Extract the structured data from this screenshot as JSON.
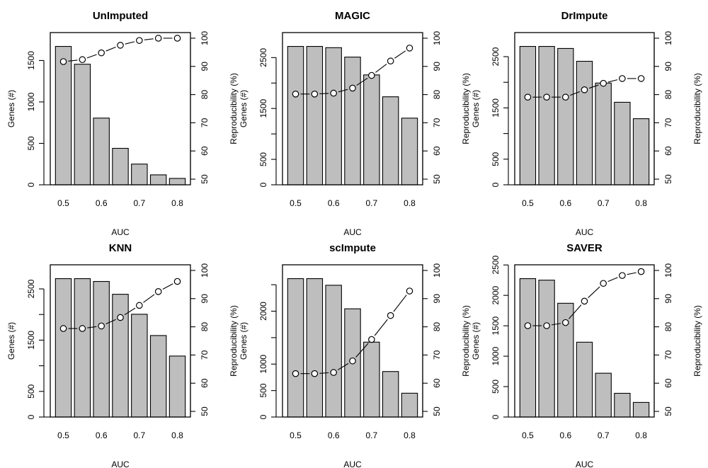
{
  "chart_data": [
    {
      "type": "bar",
      "title": "UnImputed",
      "xlabel": "AUC",
      "ylabel": "Genes (#)",
      "y2label": "Reproducibility (%)",
      "categories": [
        "0.5",
        "0.55",
        "0.6",
        "0.65",
        "0.7",
        "0.75",
        "0.8"
      ],
      "x_tick_labels": [
        "0.5",
        "0.6",
        "0.7",
        "0.8"
      ],
      "y_ticks": [
        0,
        500,
        1000,
        1500
      ],
      "y_tick_labels": [
        "0",
        "500",
        "1000",
        "1500"
      ],
      "y2_ticks": [
        50,
        60,
        70,
        80,
        90,
        100
      ],
      "y2lim": [
        50,
        100
      ],
      "series": [
        {
          "name": "Genes (#)",
          "type": "bar",
          "values": [
            1670,
            1455,
            805,
            440,
            250,
            120,
            77
          ]
        },
        {
          "name": "Reproducibility (%)",
          "type": "line",
          "axis": "right",
          "values": [
            91.7,
            92.4,
            94.8,
            97.5,
            99.2,
            100,
            100
          ]
        }
      ]
    },
    {
      "type": "bar",
      "title": "MAGIC",
      "xlabel": "AUC",
      "ylabel": "Genes (#)",
      "y2label": "Reproducibility (%)",
      "categories": [
        "0.5",
        "0.55",
        "0.6",
        "0.65",
        "0.7",
        "0.75",
        "0.8"
      ],
      "x_tick_labels": [
        "0.5",
        "0.6",
        "0.7",
        "0.8"
      ],
      "y_ticks": [
        0,
        500,
        1000,
        1500,
        2000,
        2500
      ],
      "y_tick_labels": [
        "0",
        "500",
        "",
        "1500",
        "",
        "2500"
      ],
      "y2_ticks": [
        50,
        60,
        70,
        80,
        90,
        100
      ],
      "y2lim": [
        50,
        100
      ],
      "series": [
        {
          "name": "Genes (#)",
          "type": "bar",
          "values": [
            2720,
            2720,
            2695,
            2510,
            2160,
            1730,
            1310
          ]
        },
        {
          "name": "Reproducibility (%)",
          "type": "line",
          "axis": "right",
          "values": [
            80.2,
            80.2,
            80.5,
            82.3,
            86.8,
            91.9,
            96.5
          ]
        }
      ]
    },
    {
      "type": "bar",
      "title": "DrImpute",
      "xlabel": "AUC",
      "ylabel": "Genes (#)",
      "y2label": "Reproducibility (%)",
      "categories": [
        "0.5",
        "0.55",
        "0.6",
        "0.65",
        "0.7",
        "0.75",
        "0.8"
      ],
      "x_tick_labels": [
        "0.5",
        "0.6",
        "0.7",
        "0.8"
      ],
      "y_ticks": [
        0,
        500,
        1000,
        1500,
        2000,
        2500
      ],
      "y_tick_labels": [
        "0",
        "500",
        "",
        "1500",
        "",
        "2500"
      ],
      "y2_ticks": [
        50,
        60,
        70,
        80,
        90,
        100
      ],
      "y2lim": [
        50,
        100
      ],
      "series": [
        {
          "name": "Genes (#)",
          "type": "bar",
          "values": [
            2700,
            2700,
            2660,
            2410,
            1985,
            1610,
            1290
          ]
        },
        {
          "name": "Reproducibility (%)",
          "type": "line",
          "axis": "right",
          "values": [
            79.1,
            79.1,
            79.1,
            81.7,
            84.0,
            85.7,
            85.7
          ]
        }
      ]
    },
    {
      "type": "bar",
      "title": "KNN",
      "xlabel": "AUC",
      "ylabel": "Genes (#)",
      "y2label": "Reproducibility (%)",
      "categories": [
        "0.5",
        "0.55",
        "0.6",
        "0.65",
        "0.7",
        "0.75",
        "0.8"
      ],
      "x_tick_labels": [
        "0.5",
        "0.6",
        "0.7",
        "0.8"
      ],
      "y_ticks": [
        0,
        500,
        1000,
        1500,
        2000,
        2500
      ],
      "y_tick_labels": [
        "0",
        "500",
        "",
        "1500",
        "",
        "2500"
      ],
      "y2_ticks": [
        50,
        60,
        70,
        80,
        90,
        100
      ],
      "y2lim": [
        50,
        100
      ],
      "series": [
        {
          "name": "Genes (#)",
          "type": "bar",
          "values": [
            2700,
            2700,
            2645,
            2395,
            2005,
            1590,
            1190
          ]
        },
        {
          "name": "Reproducibility (%)",
          "type": "line",
          "axis": "right",
          "values": [
            79.4,
            79.4,
            80.3,
            83.3,
            87.6,
            92.5,
            96.1
          ]
        }
      ]
    },
    {
      "type": "bar",
      "title": "scImpute",
      "xlabel": "AUC",
      "ylabel": "Genes (#)",
      "y2label": "Reproducibility (%)",
      "categories": [
        "0.5",
        "0.55",
        "0.6",
        "0.65",
        "0.7",
        "0.75",
        "0.8"
      ],
      "x_tick_labels": [
        "0.5",
        "0.6",
        "0.7",
        "0.8"
      ],
      "y_ticks": [
        0,
        500,
        1000,
        1500,
        2000,
        2500
      ],
      "y_tick_labels": [
        "0",
        "500",
        "1000",
        "",
        "2000",
        ""
      ],
      "y2_ticks": [
        50,
        60,
        70,
        80,
        90,
        100
      ],
      "y2lim": [
        50,
        100
      ],
      "series": [
        {
          "name": "Genes (#)",
          "type": "bar",
          "values": [
            2615,
            2615,
            2490,
            2045,
            1415,
            860,
            450
          ]
        },
        {
          "name": "Reproducibility (%)",
          "type": "line",
          "axis": "right",
          "values": [
            63.4,
            63.4,
            63.8,
            67.9,
            75.5,
            84.0,
            92.7
          ]
        }
      ]
    },
    {
      "type": "bar",
      "title": "SAVER",
      "xlabel": "AUC",
      "ylabel": "Genes (#)",
      "y2label": "Reproducibility (%)",
      "categories": [
        "0.5",
        "0.55",
        "0.6",
        "0.65",
        "0.7",
        "0.75",
        "0.8"
      ],
      "x_tick_labels": [
        "0.5",
        "0.6",
        "0.7",
        "0.8"
      ],
      "y_ticks": [
        0,
        500,
        1000,
        1500,
        2000,
        2500
      ],
      "y_tick_labels": [
        "0",
        "500",
        "1000",
        "1500",
        "2000",
        "2500"
      ],
      "y2_ticks": [
        50,
        60,
        70,
        80,
        90,
        100
      ],
      "y2lim": [
        50,
        100
      ],
      "series": [
        {
          "name": "Genes (#)",
          "type": "bar",
          "values": [
            2275,
            2250,
            1870,
            1230,
            720,
            390,
            240
          ]
        },
        {
          "name": "Reproducibility (%)",
          "type": "line",
          "axis": "right",
          "values": [
            80.4,
            80.4,
            81.5,
            89.1,
            95.4,
            98.2,
            99.6
          ]
        }
      ]
    }
  ]
}
